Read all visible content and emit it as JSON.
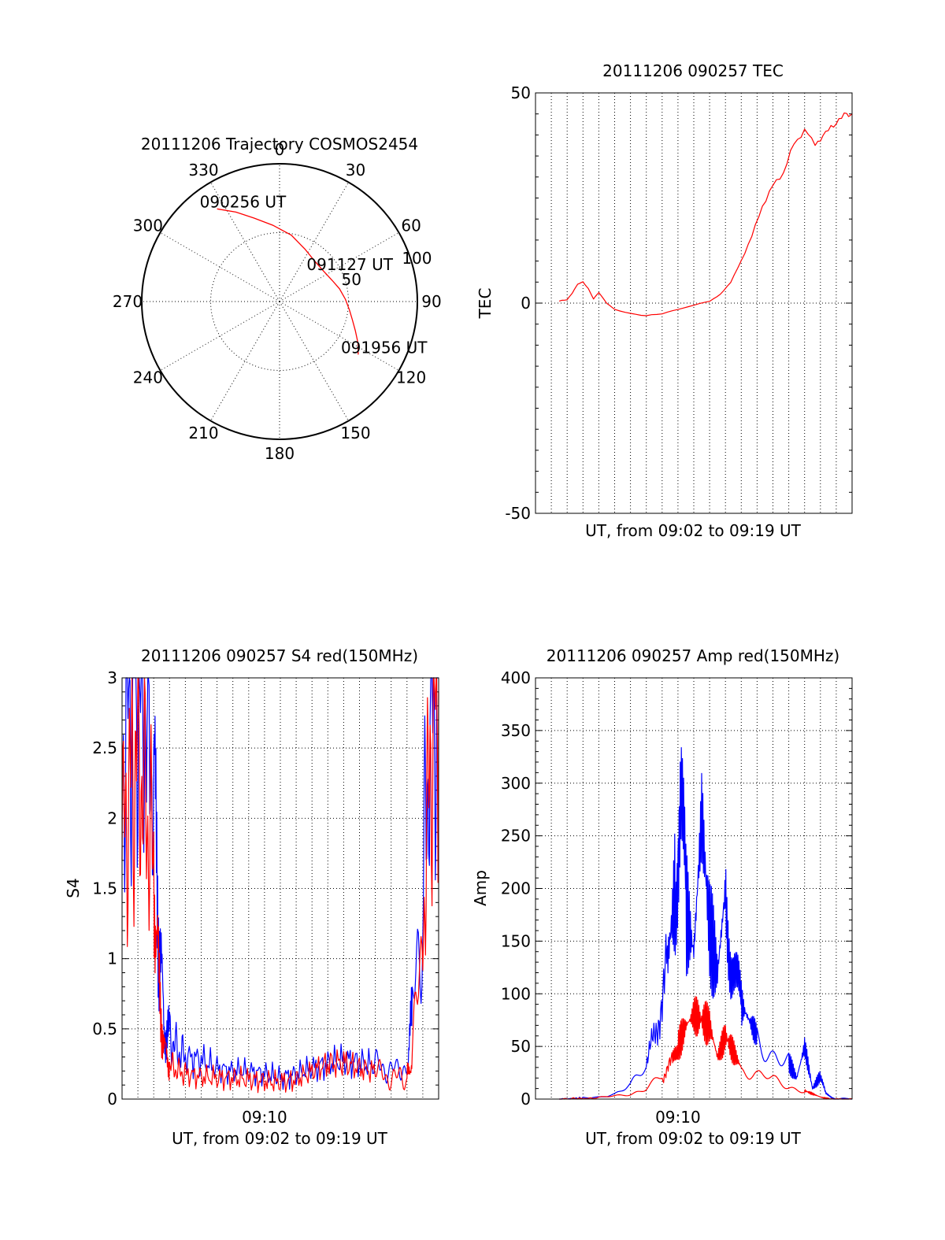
{
  "chart_data": [
    {
      "type": "polar",
      "title": "20111206 Trajectory COSMOS2454",
      "angle_labels": [
        "0",
        "30",
        "60",
        "90",
        "120",
        "150",
        "180",
        "210",
        "240",
        "270",
        "300",
        "330"
      ],
      "radial_labels": [
        "50",
        "100"
      ],
      "rlim": [
        0,
        100
      ],
      "grid": true,
      "series": [
        {
          "color": "#ff0000",
          "points": [
            {
              "az": 326,
              "el": 17
            },
            {
              "az": 334,
              "el": 25
            },
            {
              "az": 343,
              "el": 33
            },
            {
              "az": 355,
              "el": 40
            },
            {
              "az": 10,
              "el": 46
            },
            {
              "az": 26,
              "el": 52
            },
            {
              "az": 41,
              "el": 55
            },
            {
              "az": 56,
              "el": 55
            },
            {
              "az": 68,
              "el": 53
            },
            {
              "az": 78,
              "el": 50
            },
            {
              "az": 88,
              "el": 47
            },
            {
              "az": 97,
              "el": 44
            },
            {
              "az": 104,
              "el": 41
            },
            {
              "az": 111,
              "el": 37
            },
            {
              "az": 118,
              "el": 32
            },
            {
              "az": 124,
              "el": 28
            }
          ]
        }
      ],
      "annotations": [
        {
          "text": "090256 UT",
          "az": 326,
          "el": 17
        },
        {
          "text": "091127 UT",
          "az": 56,
          "el": 55
        },
        {
          "text": "091956 UT",
          "az": 124,
          "el": 28
        }
      ]
    },
    {
      "type": "line",
      "title": "20111206 090257 TEC",
      "xlabel": "UT, from 09:02 to 09:19 UT",
      "ylabel": "TEC",
      "xlim": [
        "09:01:00",
        "09:21:00"
      ],
      "ylim": [
        -50,
        50
      ],
      "yticks": [
        "50",
        "0",
        "-50"
      ],
      "grid": true,
      "series": [
        {
          "color": "#ff0000",
          "x": [
            "09:02:30",
            "09:03:00",
            "09:03:20",
            "09:03:40",
            "09:04:00",
            "09:04:20",
            "09:04:40",
            "09:05:00",
            "09:05:30",
            "09:06:00",
            "09:07:00",
            "09:08:00",
            "09:09:00",
            "09:10:00",
            "09:11:00",
            "09:12:00",
            "09:12:40",
            "09:13:20",
            "09:14:00",
            "09:14:40",
            "09:15:20",
            "09:16:00",
            "09:16:40",
            "09:17:20",
            "09:18:00",
            "09:18:40",
            "09:19:10",
            "09:19:40",
            "09:20:10",
            "09:20:40",
            "09:21:00"
          ],
          "y": [
            0.5,
            0.8,
            2.5,
            4.5,
            5.0,
            3.5,
            1.0,
            2.5,
            0.0,
            -1.5,
            -2.5,
            -3.0,
            -2.5,
            -1.5,
            -0.5,
            0.5,
            2.0,
            5.0,
            10.0,
            16.0,
            23.0,
            28.0,
            31.0,
            38.0,
            41.0,
            38.0,
            39.5,
            42.0,
            43.5,
            45.0,
            45.0
          ]
        }
      ]
    },
    {
      "type": "line",
      "title": "20111206 090257 S4 red(150MHz)",
      "xlabel": "UT, from 09:02 to 09:19 UT",
      "ylabel": "S4",
      "xlim": [
        "09:01:00",
        "09:21:00"
      ],
      "ylim": [
        0,
        3
      ],
      "xticks": [
        "09:10"
      ],
      "yticks": [
        "0",
        "0.5",
        "1",
        "1.5",
        "2",
        "2.5",
        "3"
      ],
      "grid": true,
      "series": [
        {
          "color": "#0000ff",
          "x": [
            "09:01:00",
            "09:01:30",
            "09:02:00",
            "09:02:30",
            "09:03:00",
            "09:03:20",
            "09:03:40",
            "09:04:00",
            "09:04:30",
            "09:05:00",
            "09:06:00",
            "09:07:00",
            "09:08:00",
            "09:09:00",
            "09:10:00",
            "09:11:00",
            "09:12:00",
            "09:13:00",
            "09:14:00",
            "09:15:00",
            "09:16:00",
            "09:17:00",
            "09:17:40",
            "09:18:20",
            "09:19:00",
            "09:19:20",
            "09:20:00",
            "09:20:30",
            "09:21:00"
          ],
          "y": [
            2.4,
            2.9,
            3.0,
            2.8,
            2.3,
            1.2,
            0.5,
            0.45,
            0.35,
            0.3,
            0.28,
            0.22,
            0.2,
            0.2,
            0.18,
            0.15,
            0.18,
            0.22,
            0.25,
            0.28,
            0.26,
            0.24,
            0.22,
            0.2,
            0.25,
            0.6,
            1.5,
            2.8,
            3.0
          ]
        },
        {
          "color": "#ff0000",
          "x": [
            "09:01:00",
            "09:01:30",
            "09:02:00",
            "09:02:30",
            "09:03:00",
            "09:03:20",
            "09:03:40",
            "09:04:00",
            "09:04:30",
            "09:05:00",
            "09:06:00",
            "09:07:00",
            "09:08:00",
            "09:09:00",
            "09:10:00",
            "09:11:00",
            "09:12:00",
            "09:13:00",
            "09:14:00",
            "09:15:00",
            "09:16:00",
            "09:17:00",
            "09:17:40",
            "09:18:20",
            "09:19:00",
            "09:19:20",
            "09:20:00",
            "09:20:30",
            "09:21:00"
          ],
          "y": [
            1.8,
            2.2,
            2.5,
            2.1,
            1.7,
            0.8,
            0.35,
            0.25,
            0.2,
            0.18,
            0.16,
            0.15,
            0.15,
            0.14,
            0.13,
            0.12,
            0.14,
            0.2,
            0.25,
            0.26,
            0.22,
            0.2,
            0.16,
            0.15,
            0.15,
            0.3,
            1.2,
            2.5,
            2.9
          ]
        }
      ]
    },
    {
      "type": "line",
      "title": "20111206 090257 Amp red(150MHz)",
      "xlabel": "UT, from 09:02 to 09:19 UT",
      "ylabel": "Amp",
      "xlim": [
        "09:01:00",
        "09:21:00"
      ],
      "ylim": [
        0,
        400
      ],
      "xticks": [
        "09:10"
      ],
      "yticks": [
        "0",
        "50",
        "100",
        "150",
        "200",
        "250",
        "300",
        "350",
        "400"
      ],
      "grid": true,
      "series": [
        {
          "color": "#0000ff",
          "x": [
            "09:02:30",
            "09:04:00",
            "09:05:00",
            "09:06:00",
            "09:07:00",
            "09:08:00",
            "09:08:40",
            "09:09:20",
            "09:09:50",
            "09:10:10",
            "09:10:30",
            "09:11:00",
            "09:11:30",
            "09:12:00",
            "09:12:30",
            "09:13:00",
            "09:13:20",
            "09:13:40",
            "09:14:00",
            "09:14:30",
            "09:15:00",
            "09:16:00",
            "09:17:00",
            "09:17:30",
            "09:18:00",
            "09:18:30",
            "09:19:00",
            "09:19:20",
            "09:19:40",
            "09:20:00",
            "09:21:00"
          ],
          "y": [
            0,
            1,
            2,
            5,
            12,
            30,
            70,
            130,
            200,
            310,
            180,
            140,
            270,
            160,
            120,
            200,
            140,
            110,
            90,
            75,
            60,
            45,
            35,
            20,
            50,
            10,
            22,
            5,
            2,
            0,
            0
          ]
        },
        {
          "color": "#ff0000",
          "x": [
            "09:02:30",
            "09:05:00",
            "09:07:00",
            "09:08:00",
            "09:09:00",
            "09:09:40",
            "09:10:00",
            "09:10:30",
            "09:11:00",
            "09:11:30",
            "09:12:00",
            "09:12:30",
            "09:13:00",
            "09:13:30",
            "09:14:00",
            "09:15:00",
            "09:16:00",
            "09:17:00",
            "09:18:00",
            "09:18:30",
            "09:19:00",
            "09:19:30",
            "09:21:00"
          ],
          "y": [
            0,
            1,
            5,
            10,
            20,
            35,
            50,
            70,
            80,
            75,
            70,
            40,
            60,
            45,
            30,
            22,
            18,
            12,
            8,
            5,
            2,
            0,
            0
          ]
        }
      ]
    }
  ]
}
